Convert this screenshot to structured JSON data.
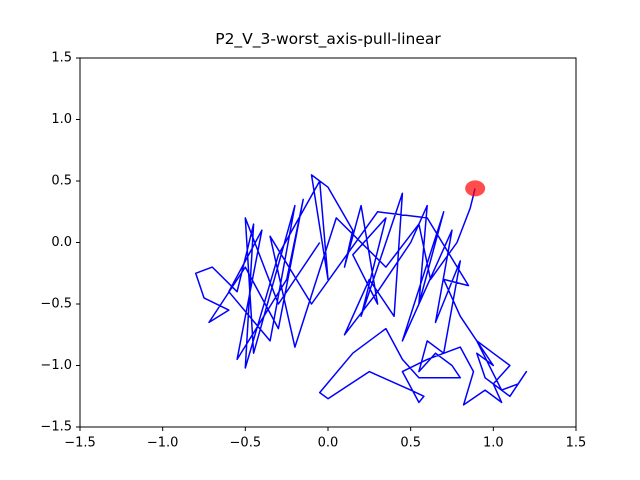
{
  "chart_data": {
    "type": "line",
    "title": "P2_V_3-worst_axis-pull-linear",
    "xlim": [
      -1.5,
      1.5
    ],
    "ylim": [
      -1.5,
      1.5
    ],
    "xticks": [
      {
        "value": -1.5,
        "label": "−1.5"
      },
      {
        "value": -1.0,
        "label": "−1.0"
      },
      {
        "value": -0.5,
        "label": "−0.5"
      },
      {
        "value": 0,
        "label": "0.0"
      },
      0.5,
      {
        "value": 1.0,
        "label": "1.0"
      },
      1.5
    ],
    "yticks": [
      {
        "value": -1.5,
        "label": "−1.5"
      },
      {
        "value": -1.0,
        "label": "−1.0"
      },
      {
        "value": -0.5,
        "label": "−0.5"
      },
      {
        "value": 0,
        "label": "0.0"
      },
      0.5,
      {
        "value": 1.0,
        "label": "1.0"
      },
      1.5
    ],
    "series": [
      {
        "color": "#0000ff",
        "x": [
          -0.05,
          -0.3,
          -0.5,
          -0.45,
          -0.2,
          -0.35,
          -0.6,
          -0.4,
          -0.55,
          -0.25,
          -0.15,
          -0.3,
          -0.5,
          -0.72,
          -0.6,
          -0.75,
          -0.8,
          -0.7,
          -0.55,
          -0.45,
          -0.5,
          -0.3,
          -0.05,
          0.0,
          -0.1,
          0.0,
          0.15,
          0.1,
          0.2,
          0.3,
          0.15,
          0.35,
          0.2,
          0.45,
          0.4,
          0.25,
          0.1,
          0.3,
          0.5,
          0.6,
          0.55,
          0.7,
          0.45,
          0.75,
          0.65,
          0.8,
          0.7,
          0.6,
          0.55,
          0.65,
          0.75,
          0.8,
          0.55,
          0.45,
          0.35,
          0.15,
          -0.05,
          0.0,
          0.25,
          0.5,
          0.58,
          0.55,
          0.45,
          0.6,
          0.8,
          0.88,
          0.82,
          0.95,
          1.05,
          1.0,
          1.1,
          1.0,
          0.9,
          1.05,
          1.15,
          1.2,
          1.1,
          0.95,
          0.9,
          1.0,
          0.8,
          0.7,
          0.85,
          0.6,
          0.3,
          -0.1,
          -0.35,
          -0.2,
          0.05,
          0.35,
          0.55,
          0.62,
          0.78,
          0.86,
          0.89
        ],
        "y": [
          0.0,
          -0.5,
          0.2,
          -0.9,
          0.3,
          -0.8,
          -0.4,
          0.1,
          -0.95,
          -0.3,
          0.35,
          -0.7,
          -0.2,
          -0.65,
          -0.55,
          -0.45,
          -0.25,
          -0.2,
          -0.4,
          0.15,
          -1.02,
          -0.1,
          0.5,
          -0.3,
          0.55,
          0.45,
          0.1,
          -0.2,
          0.3,
          -0.5,
          -0.1,
          0.2,
          -0.6,
          0.4,
          -0.6,
          -0.3,
          -0.75,
          -0.4,
          0.0,
          0.3,
          -0.5,
          0.25,
          -0.8,
          0.1,
          -0.65,
          -0.15,
          -0.9,
          -0.8,
          -1.05,
          -0.9,
          -1.0,
          -1.1,
          -1.1,
          -0.95,
          -0.7,
          -0.9,
          -1.22,
          -1.27,
          -1.05,
          -1.2,
          -1.25,
          -1.3,
          -1.05,
          -0.95,
          -0.85,
          -1.05,
          -1.32,
          -1.2,
          -1.3,
          -1.15,
          -1.0,
          -0.9,
          -0.8,
          -1.2,
          -1.15,
          -1.05,
          -1.25,
          -1.1,
          -0.9,
          -1.0,
          -0.6,
          -0.3,
          -0.35,
          0.2,
          0.25,
          -0.5,
          0.05,
          -0.85,
          0.2,
          -0.2,
          0.15,
          -0.3,
          0.0,
          0.28,
          0.44
        ]
      }
    ],
    "marker": {
      "x": 0.89,
      "y": 0.44,
      "color": "#ff0000",
      "alpha": 0.7
    }
  }
}
